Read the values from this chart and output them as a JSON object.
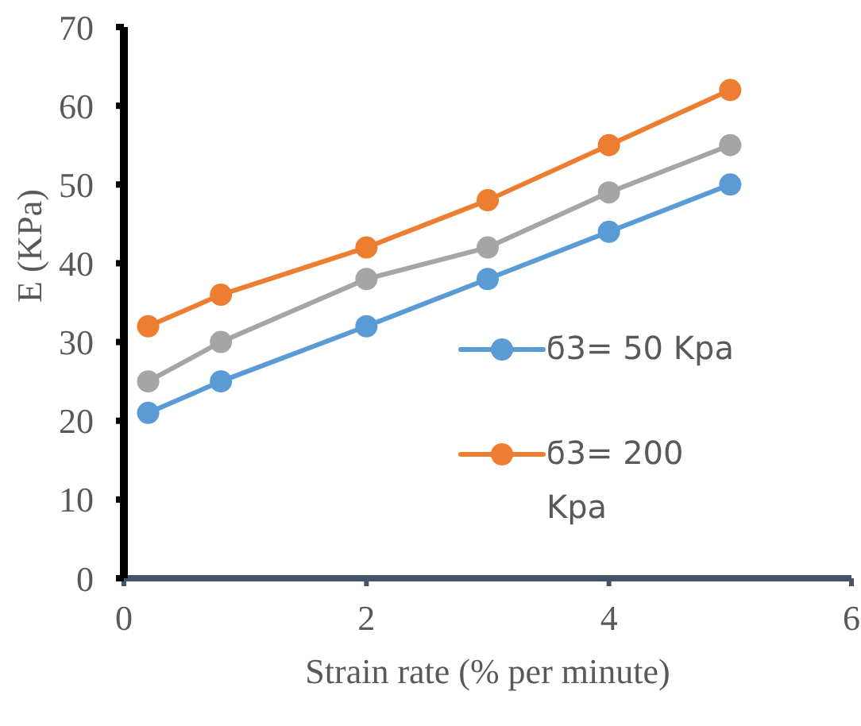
{
  "chart_data": {
    "type": "line",
    "xlabel": "Strain rate (% per minute)",
    "ylabel": "E (KPa)",
    "x": [
      0.2,
      0.8,
      2,
      3,
      4,
      5
    ],
    "series": [
      {
        "name": "ϭ3= 50 Kpa",
        "color": "#5b9bd5",
        "values": [
          21,
          25,
          32,
          38,
          44,
          50
        ]
      },
      {
        "name": "ϭ3= 200 Kpa",
        "color": "#ed7d31",
        "values": [
          32,
          36,
          42,
          48,
          55,
          62
        ]
      },
      {
        "color": "#a5a5a5",
        "values": [
          25,
          30,
          38,
          42,
          49,
          55
        ]
      }
    ],
    "xlim": [
      0,
      6
    ],
    "xticks": [
      0,
      2,
      4,
      6
    ],
    "ylim": [
      0,
      70
    ],
    "yticks": [
      0,
      10,
      20,
      30,
      40,
      50,
      60,
      70
    ],
    "grid": false,
    "legend": "right",
    "marker": "circle",
    "line_style": "solid"
  }
}
